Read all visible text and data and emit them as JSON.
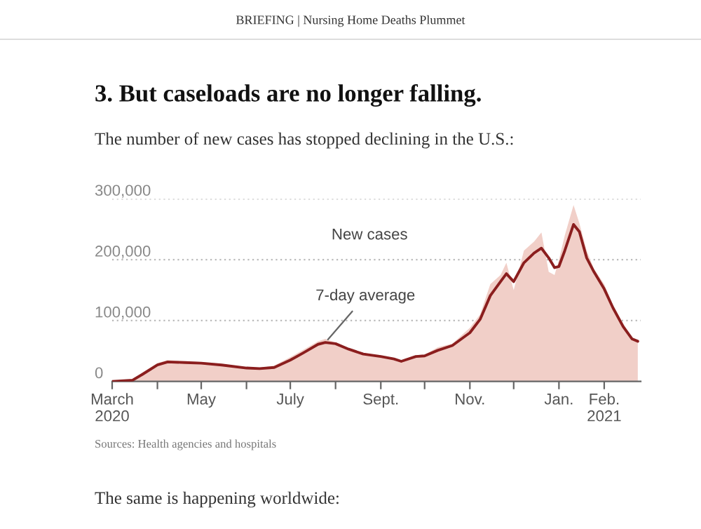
{
  "chart_data": {
    "type": "line",
    "title": "3. But caseloads are no longer falling.",
    "subtitle": "The number of new cases has stopped declining in the U.S.:",
    "x": [
      "2020-03-01",
      "2020-03-15",
      "2020-03-22",
      "2020-04-01",
      "2020-04-08",
      "2020-04-20",
      "2020-05-01",
      "2020-05-15",
      "2020-06-01",
      "2020-06-10",
      "2020-06-20",
      "2020-07-01",
      "2020-07-10",
      "2020-07-20",
      "2020-07-25",
      "2020-08-01",
      "2020-08-10",
      "2020-08-20",
      "2020-09-01",
      "2020-09-10",
      "2020-09-15",
      "2020-09-25",
      "2020-10-01",
      "2020-10-10",
      "2020-10-20",
      "2020-11-01",
      "2020-11-08",
      "2020-11-15",
      "2020-11-22",
      "2020-11-26",
      "2020-12-01",
      "2020-12-08",
      "2020-12-15",
      "2020-12-20",
      "2020-12-25",
      "2020-12-29",
      "2021-01-01",
      "2021-01-05",
      "2021-01-11",
      "2021-01-15",
      "2021-01-20",
      "2021-01-25",
      "2021-02-01",
      "2021-02-07",
      "2021-02-14",
      "2021-02-20",
      "2021-02-24"
    ],
    "series": [
      {
        "type": "area",
        "color": "#f1cfc8",
        "values": [
          0,
          2000,
          15000,
          30000,
          35000,
          33000,
          32000,
          28000,
          22000,
          22000,
          26000,
          40000,
          52000,
          66000,
          70000,
          64000,
          54000,
          47000,
          42000,
          38000,
          34000,
          43000,
          44000,
          56000,
          62000,
          88000,
          110000,
          160000,
          175000,
          195000,
          150000,
          215000,
          230000,
          245000,
          180000,
          175000,
          200000,
          240000,
          290000,
          260000,
          215000,
          185000,
          160000,
          125000,
          95000,
          72000,
          64000
        ]
      },
      {
        "color": "#8b1e1e",
        "values": [
          0,
          2000,
          12000,
          27000,
          32000,
          31000,
          30000,
          27000,
          22000,
          21000,
          23000,
          35000,
          47000,
          61000,
          64000,
          62000,
          53000,
          45000,
          41000,
          37000,
          33000,
          41000,
          42000,
          51000,
          59000,
          80000,
          102000,
          141000,
          164000,
          177000,
          164000,
          195000,
          211000,
          219000,
          203000,
          187000,
          189000,
          215000,
          258000,
          246000,
          203000,
          180000,
          152000,
          121000,
          90000,
          70000,
          66000
        ]
      }
    ],
    "xlim": [
      "2020-03-01",
      "2021-02-26"
    ],
    "xticks": [
      {
        "value": "2020-03-01",
        "label": "March\n2020"
      },
      {
        "value": "2020-04-01",
        "label": null
      },
      {
        "value": "2020-05-01",
        "label": "May"
      },
      {
        "value": "2020-06-01",
        "label": null
      },
      {
        "value": "2020-07-01",
        "label": "July"
      },
      {
        "value": "2020-08-01",
        "label": null
      },
      {
        "value": "2020-09-01",
        "label": "Sept."
      },
      {
        "value": "2020-10-01",
        "label": null
      },
      {
        "value": "2020-11-01",
        "label": "Nov."
      },
      {
        "value": "2020-12-01",
        "label": null
      },
      {
        "value": "2021-01-01",
        "label": "Jan."
      },
      {
        "value": "2021-02-01",
        "label": "Feb.\n2021"
      }
    ],
    "ylim": [
      0,
      300000
    ],
    "yticks": [
      {
        "value": 0,
        "label": "0"
      },
      {
        "value": 100000,
        "label": "100,000"
      },
      {
        "value": 200000,
        "label": "200,000"
      },
      {
        "value": 300000,
        "label": "300,000"
      }
    ],
    "grid": "y",
    "legend": false,
    "annotations": [
      "BRIEFING | Nursing Home Deaths Plummet",
      "New cases",
      {
        "text": "7-day average",
        "x": "2020-07-25",
        "y": 64000
      },
      "Sources: Health agencies and hospitals",
      "The same is happening worldwide:"
    ]
  }
}
